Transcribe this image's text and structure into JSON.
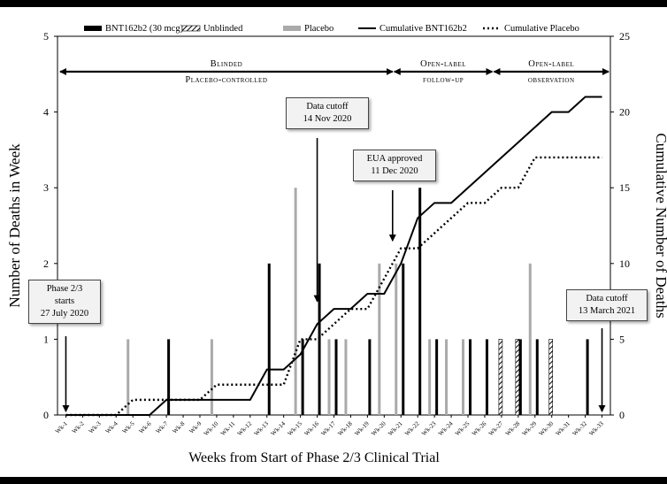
{
  "chart_data": {
    "type": "bar",
    "xlabel": "Weeks from Start of Phase 2/3 Clinical Trial",
    "ylabel": "Number of Deaths in Week",
    "y2label": "Cumulative Number of Deaths",
    "ylim": [
      0,
      5
    ],
    "y2lim": [
      0,
      25
    ],
    "yticks": [
      "0",
      "1",
      "2",
      "3",
      "4",
      "5"
    ],
    "y2ticks": [
      "0",
      "5",
      "10",
      "15",
      "20",
      "25"
    ],
    "categories": [
      "Wk-1",
      "Wk-2",
      "Wk-3",
      "Wk-4",
      "Wk-5",
      "Wk-6",
      "Wk-7",
      "Wk-8",
      "Wk-9",
      "Wk-10",
      "Wk-11",
      "Wk-12",
      "Wk-13",
      "Wk-14",
      "Wk-15",
      "Wk-16",
      "Wk-17",
      "Wk-18",
      "Wk-19",
      "Wk-20",
      "Wk-21",
      "Wk-22",
      "Wk-23",
      "Wk-24",
      "Wk-25",
      "Wk-26",
      "Wk-27",
      "Wk-28",
      "Wk-29",
      "Wk-30",
      "Wk-31",
      "Wk-32",
      "Wk-33"
    ],
    "legend_position": "top",
    "series": [
      {
        "name": "BNT162b2 (30 mcg)",
        "kind": "bar",
        "color": "#000000",
        "values": [
          0,
          0,
          0,
          0,
          0,
          0,
          1,
          0,
          0,
          0,
          0,
          0,
          2,
          0,
          1,
          2,
          1,
          0,
          1,
          0,
          2,
          3,
          1,
          0,
          1,
          1,
          0,
          1,
          1,
          0,
          0,
          1,
          0
        ]
      },
      {
        "name": "Unblinded",
        "kind": "bar-hatched",
        "color": "#000000",
        "values": [
          0,
          0,
          0,
          0,
          0,
          0,
          0,
          0,
          0,
          0,
          0,
          0,
          0,
          0,
          0,
          0,
          0,
          0,
          0,
          0,
          0,
          0,
          0,
          0,
          0,
          0,
          1,
          1,
          0,
          1,
          0,
          0,
          0
        ]
      },
      {
        "name": "Placebo",
        "kind": "bar",
        "color": "#aaaaaa",
        "values": [
          0,
          0,
          0,
          0,
          1,
          0,
          0,
          0,
          0,
          1,
          0,
          0,
          0,
          0,
          3,
          0,
          1,
          1,
          0,
          2,
          2,
          0,
          1,
          1,
          1,
          0,
          0,
          0,
          2,
          0,
          0,
          0,
          0
        ]
      },
      {
        "name": "Cumulative BNT162b2",
        "kind": "line",
        "axis": "right",
        "color": "#000000",
        "values": [
          0,
          0,
          0,
          0,
          0,
          0,
          1,
          1,
          1,
          1,
          1,
          1,
          3,
          3,
          4,
          6,
          7,
          7,
          8,
          8,
          10,
          13,
          14,
          14,
          15,
          16,
          17,
          18,
          19,
          20,
          20,
          21,
          21
        ]
      },
      {
        "name": "Cumulative Placebo",
        "kind": "line-dotted",
        "axis": "right",
        "color": "#000000",
        "values": [
          0,
          0,
          0,
          0,
          1,
          1,
          1,
          1,
          1,
          2,
          2,
          2,
          2,
          2,
          5,
          5,
          6,
          7,
          7,
          9,
          11,
          11,
          12,
          13,
          14,
          14,
          15,
          15,
          17,
          17,
          17,
          17,
          17
        ]
      }
    ],
    "phases": [
      {
        "label_line1": "Blinded",
        "label_line2": "Placebo-controlled",
        "from": "Wk-1",
        "to": "Wk-21"
      },
      {
        "label_line1": "Open-label",
        "label_line2": "follow-up",
        "from": "Wk-21",
        "to": "Wk-26"
      },
      {
        "label_line1": "Open-label",
        "label_line2": "observation",
        "from": "Wk-26",
        "to": "Wk-33"
      }
    ],
    "annotations": [
      {
        "line1": "Phase 2/3",
        "line2": "starts",
        "line3": "27 July 2020",
        "week": "Wk-1"
      },
      {
        "line1": "Data cutoff",
        "line2": "14 Nov 2020",
        "week": "Wk-16"
      },
      {
        "line1": "EUA approved",
        "line2": "11 Dec 2020",
        "week": "Wk-20"
      },
      {
        "line1": "Data cutoff",
        "line2": "13 March 2021",
        "week": "Wk-33"
      }
    ]
  }
}
